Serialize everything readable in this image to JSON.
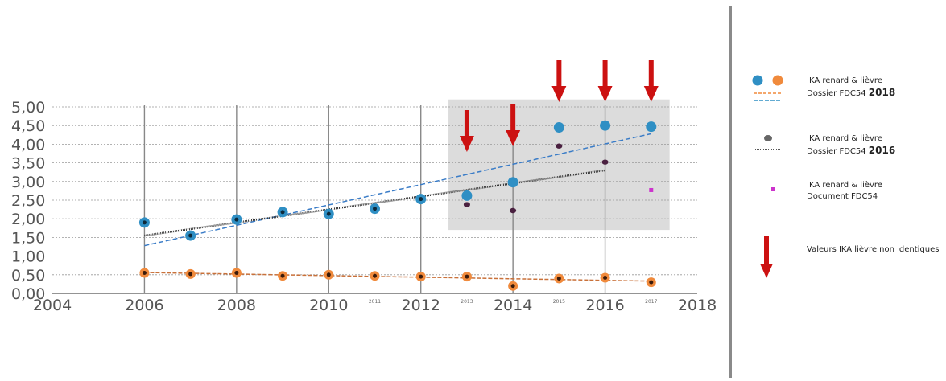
{
  "chart_data": {
    "type": "scatter",
    "title": "",
    "xlabel": "",
    "ylabel": "",
    "xlim": [
      2004,
      2018
    ],
    "ylim": [
      0,
      5
    ],
    "x_tick_labels": [
      "2004",
      "2006",
      "2008",
      "2010",
      "2012",
      "2014",
      "2016",
      "2018"
    ],
    "y_tick_labels": [
      "0,00",
      "0,50",
      "1,00",
      "1,50",
      "2,00",
      "2,50",
      "3,00",
      "3,50",
      "4,00",
      "4,50",
      "5,00"
    ],
    "small_year_labels": [
      "2011",
      "2013",
      "2015",
      "2017"
    ],
    "grid": true,
    "highlight_region": {
      "x_range": [
        2012.6,
        2017.4
      ],
      "y_range": [
        1.7,
        5.2
      ],
      "color": "#dcdcdc"
    },
    "series": [
      {
        "name": "IKA renard & lièvre Dossier FDC54 2018 (blue)",
        "color": "#2f8fc4",
        "points": [
          [
            2006,
            1.9
          ],
          [
            2007,
            1.55
          ],
          [
            2008,
            1.98
          ],
          [
            2009,
            2.18
          ],
          [
            2010,
            2.13
          ],
          [
            2011,
            2.27
          ],
          [
            2012,
            2.53
          ],
          [
            2013,
            2.62
          ],
          [
            2014,
            2.98
          ],
          [
            2015,
            4.45
          ],
          [
            2016,
            4.5
          ],
          [
            2017,
            4.47
          ]
        ],
        "trend": [
          [
            2006,
            1.28
          ],
          [
            2017,
            4.28
          ]
        ]
      },
      {
        "name": "IKA renard & lièvre Dossier FDC54 2018 (orange)",
        "color": "#f08a3c",
        "points": [
          [
            2006,
            0.55
          ],
          [
            2007,
            0.52
          ],
          [
            2008,
            0.55
          ],
          [
            2009,
            0.47
          ],
          [
            2010,
            0.5
          ],
          [
            2011,
            0.47
          ],
          [
            2012,
            0.45
          ],
          [
            2013,
            0.45
          ],
          [
            2014,
            0.2
          ],
          [
            2015,
            0.4
          ],
          [
            2016,
            0.42
          ],
          [
            2017,
            0.3
          ]
        ],
        "trend": [
          [
            2006,
            0.56
          ],
          [
            2017,
            0.33
          ]
        ]
      },
      {
        "name": "IKA renard & lièvre Dossier FDC54 2016",
        "color": "#4a2040",
        "points": [
          [
            2013,
            2.38
          ],
          [
            2014,
            2.22
          ],
          [
            2015,
            3.95
          ],
          [
            2016,
            3.52
          ]
        ],
        "trend": [
          [
            2006,
            1.55
          ],
          [
            2016,
            3.3
          ]
        ]
      },
      {
        "name": "IKA renard & lièvre Document FDC54",
        "color": "#cc33cc",
        "points": [
          [
            2017,
            2.77
          ]
        ]
      }
    ],
    "arrows_at_years": [
      2013,
      2014,
      2015,
      2016,
      2017
    ],
    "arrow_color": "#cc1111"
  },
  "legend": {
    "entry1": {
      "line1": "IKA renard & lièvre",
      "line2": "Dossier FDC54 ",
      "bold": "2018"
    },
    "entry2": {
      "line1": "IKA renard & lièvre",
      "line2": "Dossier FDC54 ",
      "bold": "2016"
    },
    "entry3": {
      "line1": "IKA renard & lièvre",
      "line2": "Document FDC54"
    },
    "entry4": {
      "text": "Valeurs IKA lièvre non identiques"
    }
  }
}
